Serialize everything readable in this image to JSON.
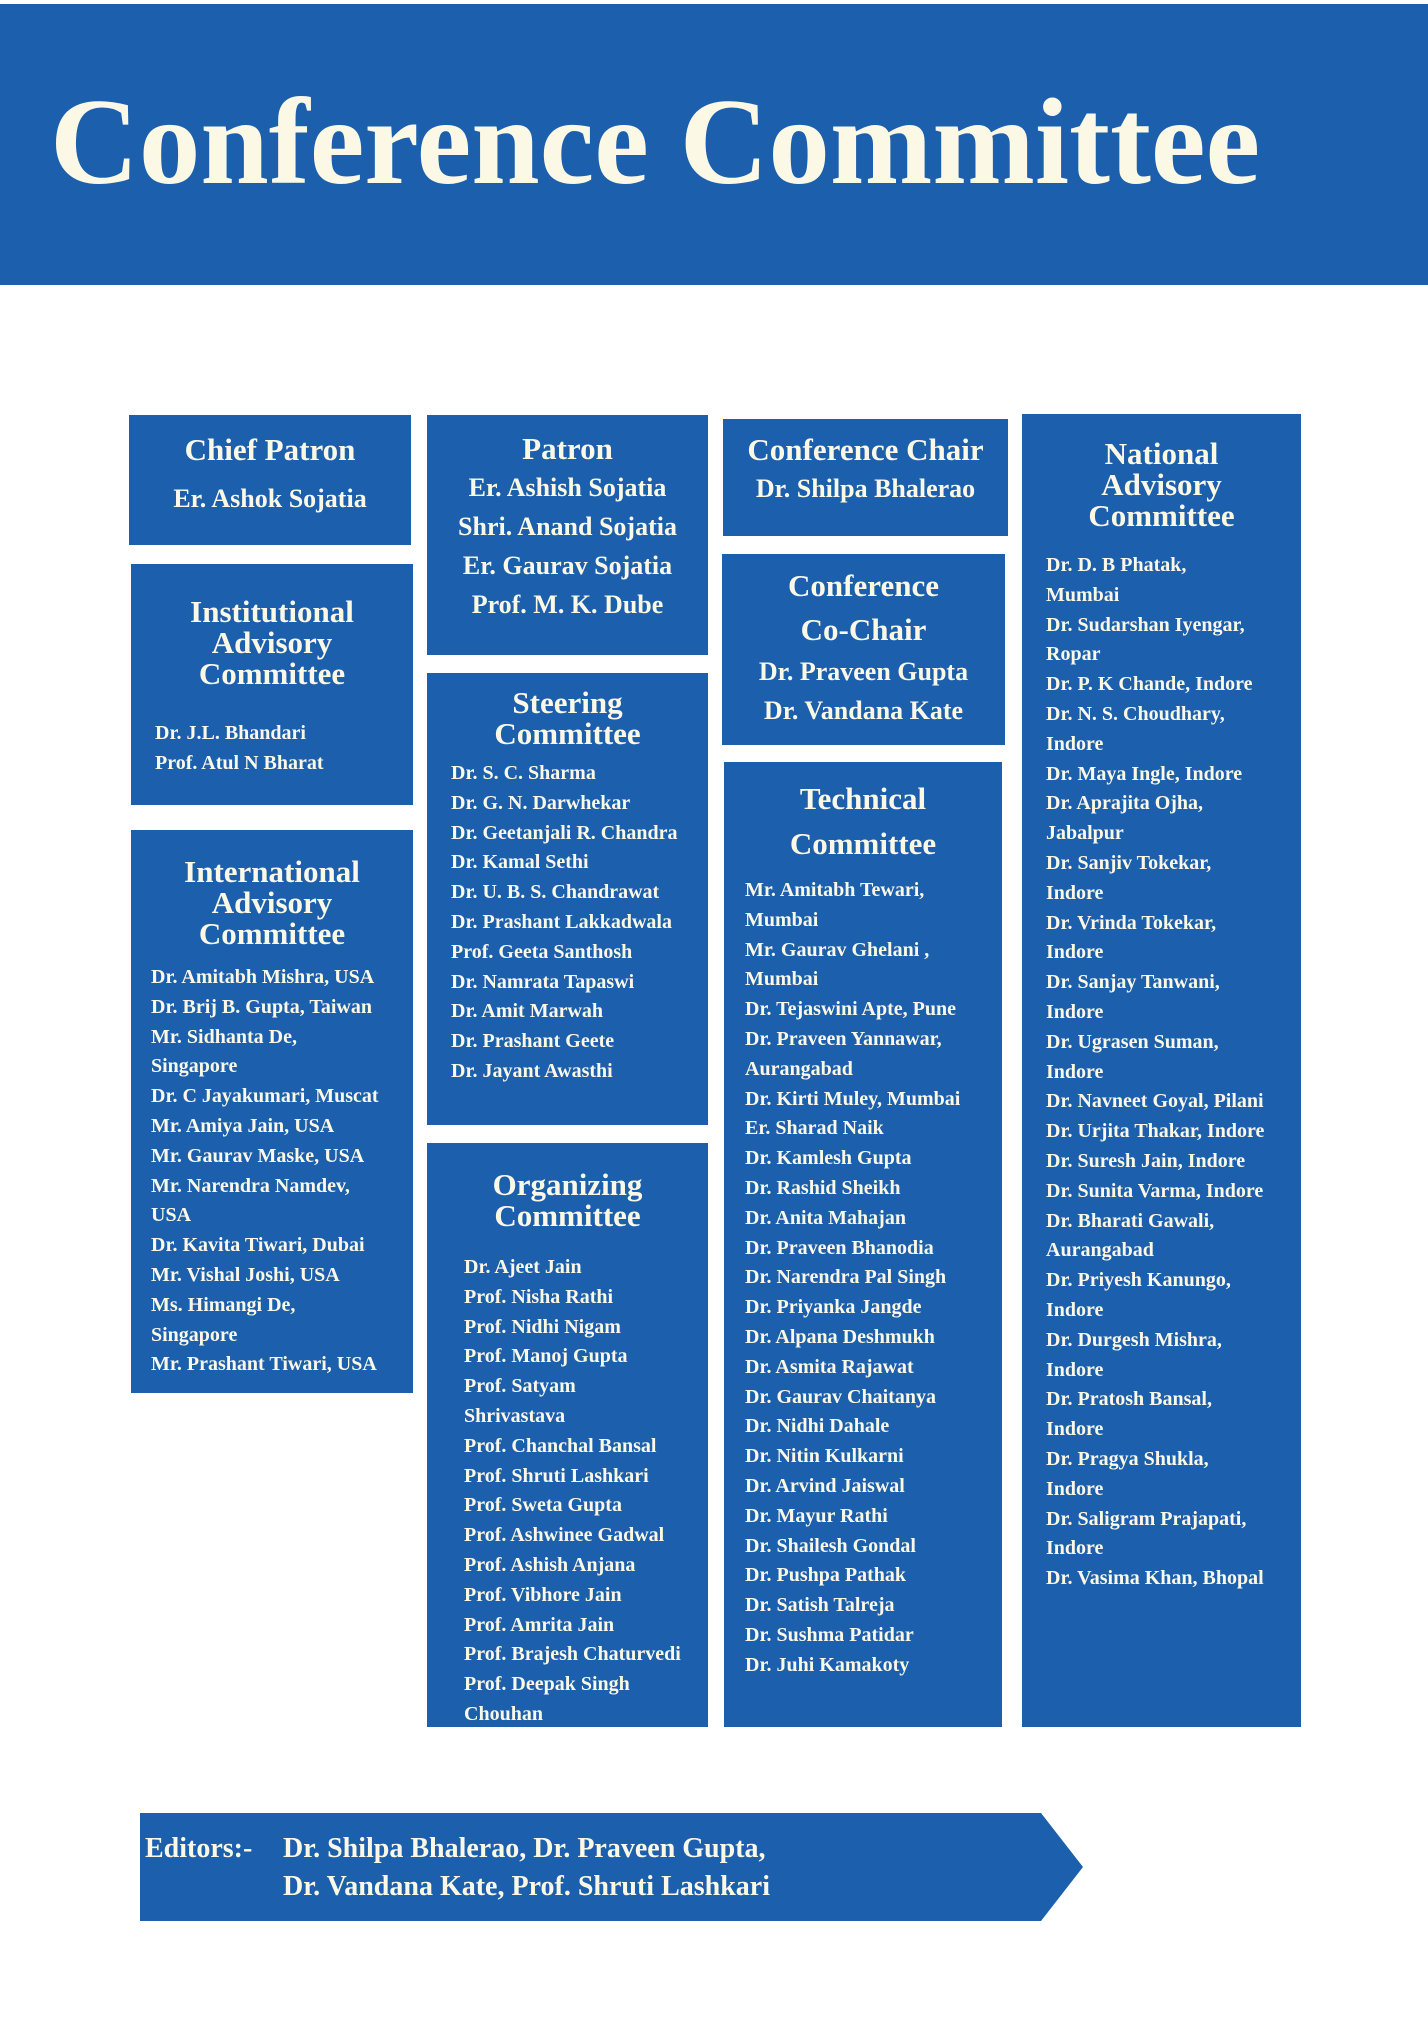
{
  "title": "Conference Committee",
  "colors": {
    "brand_blue": "#1b5fad",
    "text": "#fbf8e6"
  },
  "chief_patron": {
    "heading": "Chief Patron",
    "members": [
      "Er. Ashok Sojatia"
    ]
  },
  "patron": {
    "heading": "Patron",
    "members": [
      "Er. Ashish Sojatia",
      "Shri. Anand Sojatia",
      "Er. Gaurav Sojatia",
      "Prof. M. K. Dube"
    ]
  },
  "conference_chair": {
    "heading": "Conference Chair",
    "members": [
      "Dr. Shilpa Bhalerao"
    ]
  },
  "co_chair": {
    "heading_lines": [
      "Conference",
      "Co-Chair"
    ],
    "members": [
      "Dr. Praveen Gupta",
      "Dr. Vandana Kate"
    ]
  },
  "institutional": {
    "heading_lines": [
      "Institutional",
      "Advisory",
      "Committee"
    ],
    "members": [
      "Dr. J.L. Bhandari",
      "Prof. Atul N Bharat"
    ]
  },
  "international": {
    "heading_lines": [
      "International",
      "Advisory",
      "Committee"
    ],
    "members": [
      "Dr. Amitabh Mishra, USA",
      "Dr. Brij B. Gupta, Taiwan",
      "Mr. Sidhanta De,",
      "Singapore",
      "Dr. C Jayakumari, Muscat",
      "Mr. Amiya Jain, USA",
      "Mr. Gaurav Maske, USA",
      "Mr. Narendra Namdev,",
      "USA",
      "Dr. Kavita Tiwari, Dubai",
      "Mr. Vishal Joshi, USA",
      "Ms. Himangi De,",
      "Singapore",
      "Mr. Prashant Tiwari, USA"
    ]
  },
  "steering": {
    "heading_lines": [
      "Steering",
      "Committee"
    ],
    "members": [
      "Dr. S. C. Sharma",
      "Dr. G. N. Darwhekar",
      "Dr. Geetanjali R. Chandra",
      "Dr. Kamal Sethi",
      "Dr. U. B. S. Chandrawat",
      "Dr. Prashant Lakkadwala",
      "Prof. Geeta Santhosh",
      "Dr. Namrata Tapaswi",
      "Dr. Amit Marwah",
      "Dr. Prashant Geete",
      "Dr. Jayant Awasthi"
    ]
  },
  "organizing": {
    "heading_lines": [
      "Organizing",
      "Committee"
    ],
    "members": [
      "Dr. Ajeet Jain",
      "Prof. Nisha Rathi",
      "Prof. Nidhi Nigam",
      "Prof. Manoj Gupta",
      "Prof. Satyam",
      "Shrivastava",
      "Prof. Chanchal Bansal",
      "Prof. Shruti Lashkari",
      "Prof. Sweta Gupta",
      "Prof. Ashwinee Gadwal",
      "Prof. Ashish Anjana",
      "Prof. Vibhore Jain",
      "Prof. Amrita Jain",
      "Prof. Brajesh Chaturvedi",
      "Prof. Deepak Singh",
      "Chouhan"
    ]
  },
  "technical": {
    "heading_lines": [
      "Technical",
      "Committee"
    ],
    "members": [
      "Mr. Amitabh Tewari,",
      "Mumbai",
      "Mr. Gaurav Ghelani ,",
      "Mumbai",
      "Dr. Tejaswini Apte, Pune",
      "Dr. Praveen Yannawar,",
      "Aurangabad",
      "Dr. Kirti Muley, Mumbai",
      "Er. Sharad Naik",
      "Dr. Kamlesh Gupta",
      "Dr. Rashid Sheikh",
      "Dr. Anita Mahajan",
      "Dr. Praveen Bhanodia",
      "Dr. Narendra Pal Singh",
      "Dr. Priyanka Jangde",
      "Dr. Alpana Deshmukh",
      "Dr. Asmita Rajawat",
      "Dr. Gaurav Chaitanya",
      "Dr. Nidhi Dahale",
      "Dr. Nitin Kulkarni",
      "Dr. Arvind Jaiswal",
      "Dr. Mayur Rathi",
      "Dr. Shailesh Gondal",
      "Dr. Pushpa Pathak",
      "Dr. Satish Talreja",
      "Dr. Sushma Patidar",
      "Dr. Juhi Kamakoty"
    ]
  },
  "national": {
    "heading_lines": [
      "National",
      "Advisory",
      "Committee"
    ],
    "members": [
      "Dr. D. B Phatak,",
      "Mumbai",
      "Dr. Sudarshan Iyengar,",
      "Ropar",
      "Dr. P. K Chande, Indore",
      "Dr. N. S. Choudhary,",
      "Indore",
      "Dr. Maya Ingle, Indore",
      "Dr. Aprajita Ojha,",
      "Jabalpur",
      "Dr. Sanjiv Tokekar,",
      "Indore",
      "Dr. Vrinda Tokekar,",
      "Indore",
      "Dr. Sanjay Tanwani,",
      "Indore",
      "Dr. Ugrasen Suman,",
      "Indore",
      "Dr. Navneet Goyal, Pilani",
      "Dr. Urjita Thakar, Indore",
      "Dr. Suresh Jain, Indore",
      "Dr. Sunita Varma, Indore",
      "Dr. Bharati Gawali,",
      "Aurangabad",
      "Dr. Priyesh Kanungo,",
      "Indore",
      "Dr. Durgesh Mishra,",
      "Indore",
      "Dr. Pratosh Bansal,",
      "Indore",
      "Dr. Pragya Shukla,",
      "Indore",
      "Dr. Saligram Prajapati,",
      "Indore",
      "Dr. Vasima Khan, Bhopal"
    ]
  },
  "editors": {
    "label": "Editors:-",
    "lines": [
      "Dr. Shilpa Bhalerao, Dr. Praveen Gupta,",
      "Dr. Vandana Kate, Prof. Shruti Lashkari"
    ]
  }
}
